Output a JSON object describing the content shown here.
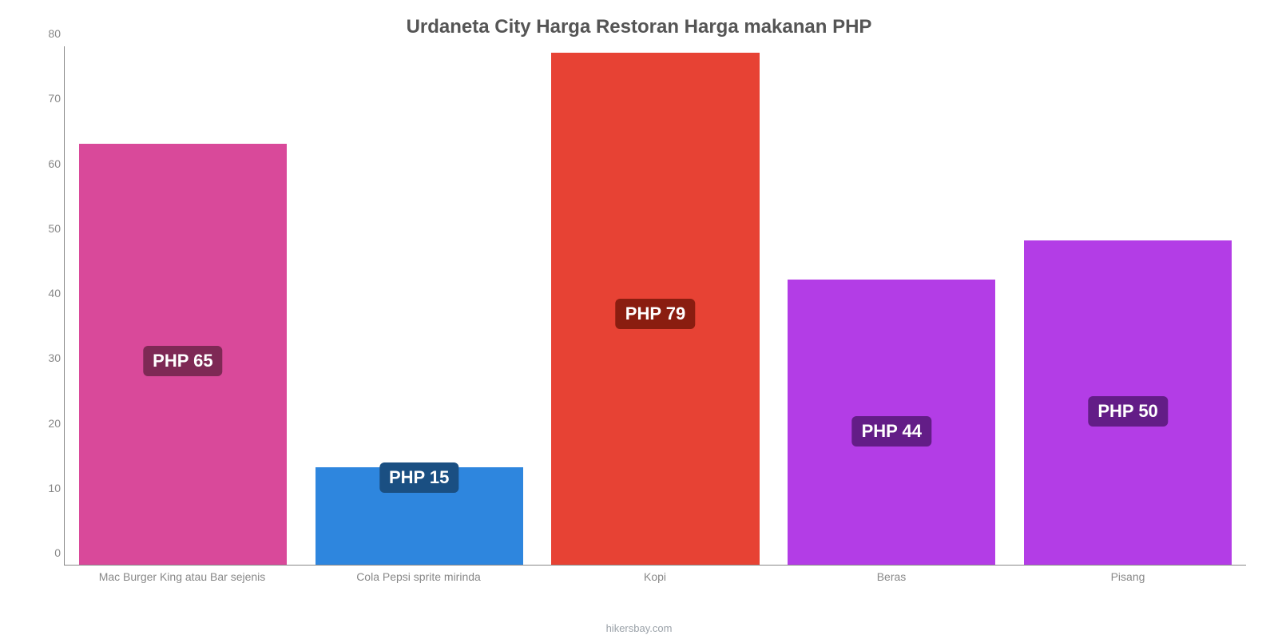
{
  "chart": {
    "type": "bar",
    "title": "Urdaneta City Harga Restoran Harga makanan PHP",
    "title_fontsize": 24,
    "title_color": "#555555",
    "credit": "hikersbay.com",
    "credit_color": "#9aa1a8",
    "background_color": "#ffffff",
    "axis_color": "#888888",
    "tick_font_color": "#888888",
    "tick_fontsize": 14,
    "xlabel_fontsize": 14,
    "bar_width_pct": 88,
    "ylim": [
      0,
      80
    ],
    "ytick_step": 10,
    "yticks": [
      0,
      10,
      20,
      30,
      40,
      50,
      60,
      70,
      80
    ],
    "categories": [
      "Mac Burger King atau Bar sejenis",
      "Cola Pepsi sprite mirinda",
      "Kopi",
      "Beras",
      "Pisang"
    ],
    "series": [
      {
        "value": 65,
        "label": "PHP 65",
        "bar_color": "#d9499a",
        "badge_bg": "#7e2955"
      },
      {
        "value": 15,
        "label": "PHP 15",
        "bar_color": "#2e86de",
        "badge_bg": "#1a4f82"
      },
      {
        "value": 79,
        "label": "PHP 79",
        "bar_color": "#e74234",
        "badge_bg": "#8a1d10"
      },
      {
        "value": 44,
        "label": "PHP 44",
        "bar_color": "#b33de6",
        "badge_bg": "#631d87"
      },
      {
        "value": 50,
        "label": "PHP 50",
        "bar_color": "#b33de6",
        "badge_bg": "#631d87"
      }
    ],
    "value_label_fontsize": 22,
    "value_label_text_color": "#ffffff"
  }
}
